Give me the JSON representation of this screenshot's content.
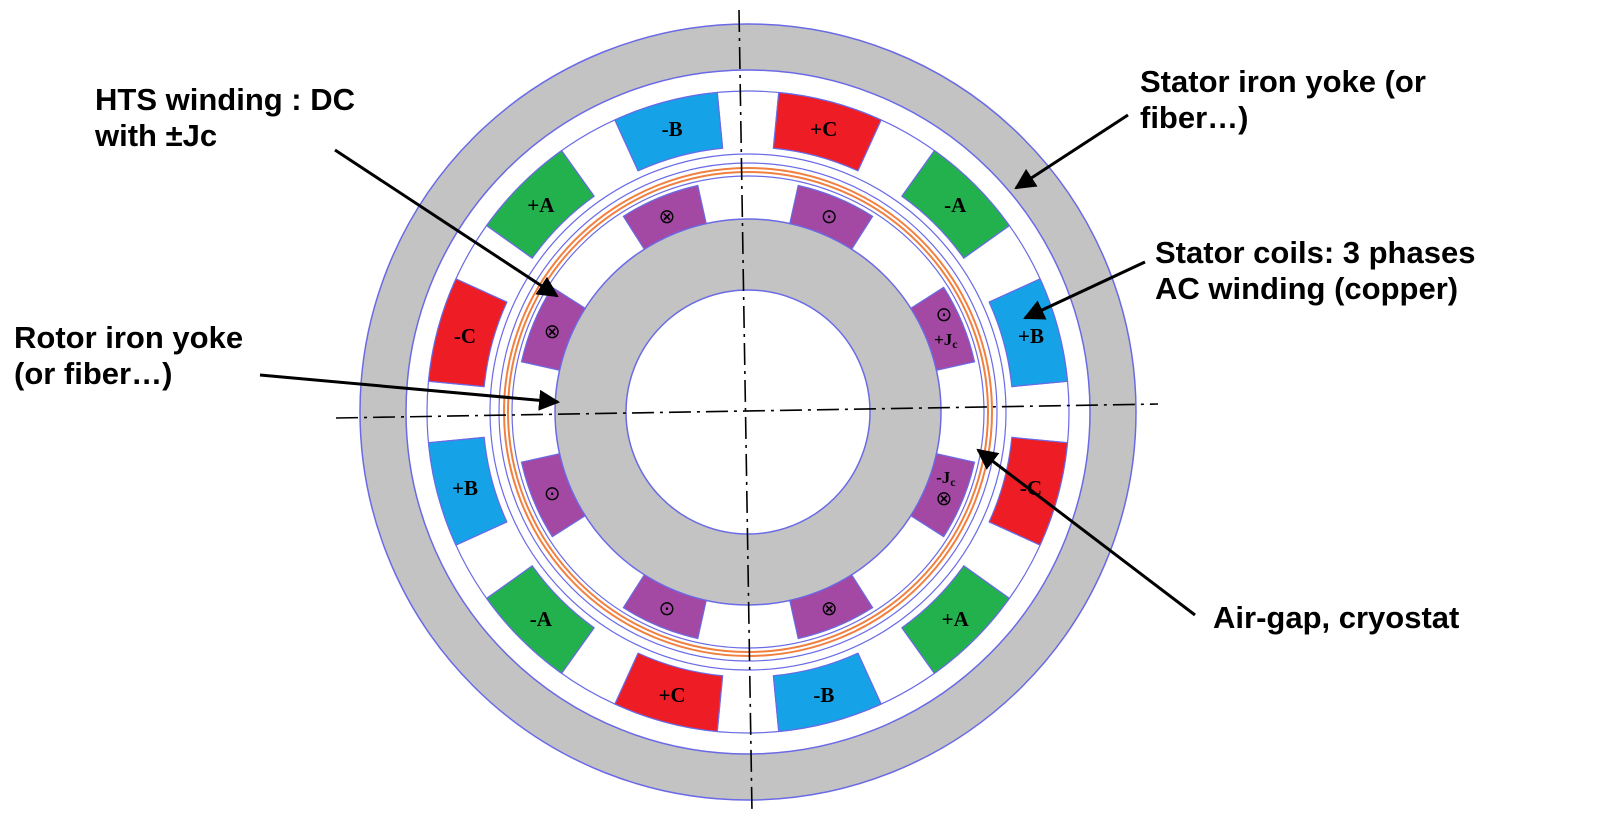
{
  "callouts": {
    "hts_winding": [
      "HTS winding : DC",
      "with ±Jc"
    ],
    "rotor_yoke": [
      "Rotor iron yoke",
      "(or fiber…)"
    ],
    "stator_yoke": [
      "Stator iron yoke (or",
      "fiber…)"
    ],
    "stator_coils": [
      "Stator coils: 3 phases",
      "AC winding (copper)"
    ],
    "air_gap": "Air-gap, cryostat"
  },
  "stator_slots": [
    {
      "label": "+C",
      "color": "#ee1c25"
    },
    {
      "label": "-A",
      "color": "#22b14c"
    },
    {
      "label": "+B",
      "color": "#15a2e6"
    },
    {
      "label": "-C",
      "color": "#ee1c25"
    },
    {
      "label": "+A",
      "color": "#22b14c"
    },
    {
      "label": "-B",
      "color": "#15a2e6"
    },
    {
      "label": "+C",
      "color": "#ee1c25"
    },
    {
      "label": "-A",
      "color": "#22b14c"
    },
    {
      "label": "+B",
      "color": "#15a2e6"
    },
    {
      "label": "-C",
      "color": "#ee1c25"
    },
    {
      "label": "+A",
      "color": "#22b14c"
    },
    {
      "label": "-B",
      "color": "#15a2e6"
    }
  ],
  "rotor_coils": [
    {
      "symbol": "⊙",
      "current": ""
    },
    {
      "symbol": "⊙",
      "current": "+Jc"
    },
    {
      "symbol": "⊗",
      "current": "-Jc"
    },
    {
      "symbol": "⊗",
      "current": ""
    },
    {
      "symbol": "⊙",
      "current": ""
    },
    {
      "symbol": "⊙",
      "current": ""
    },
    {
      "symbol": "⊗",
      "current": ""
    },
    {
      "symbol": "⊗",
      "current": ""
    }
  ],
  "colors": {
    "iron": "#c3c3c3",
    "outline": "#6a6ae6",
    "hts_coil": "#a349a4",
    "cryostat": "#f08040"
  },
  "icons": {
    "out_of_page": "dot-circle",
    "into_page": "cross-circle"
  }
}
